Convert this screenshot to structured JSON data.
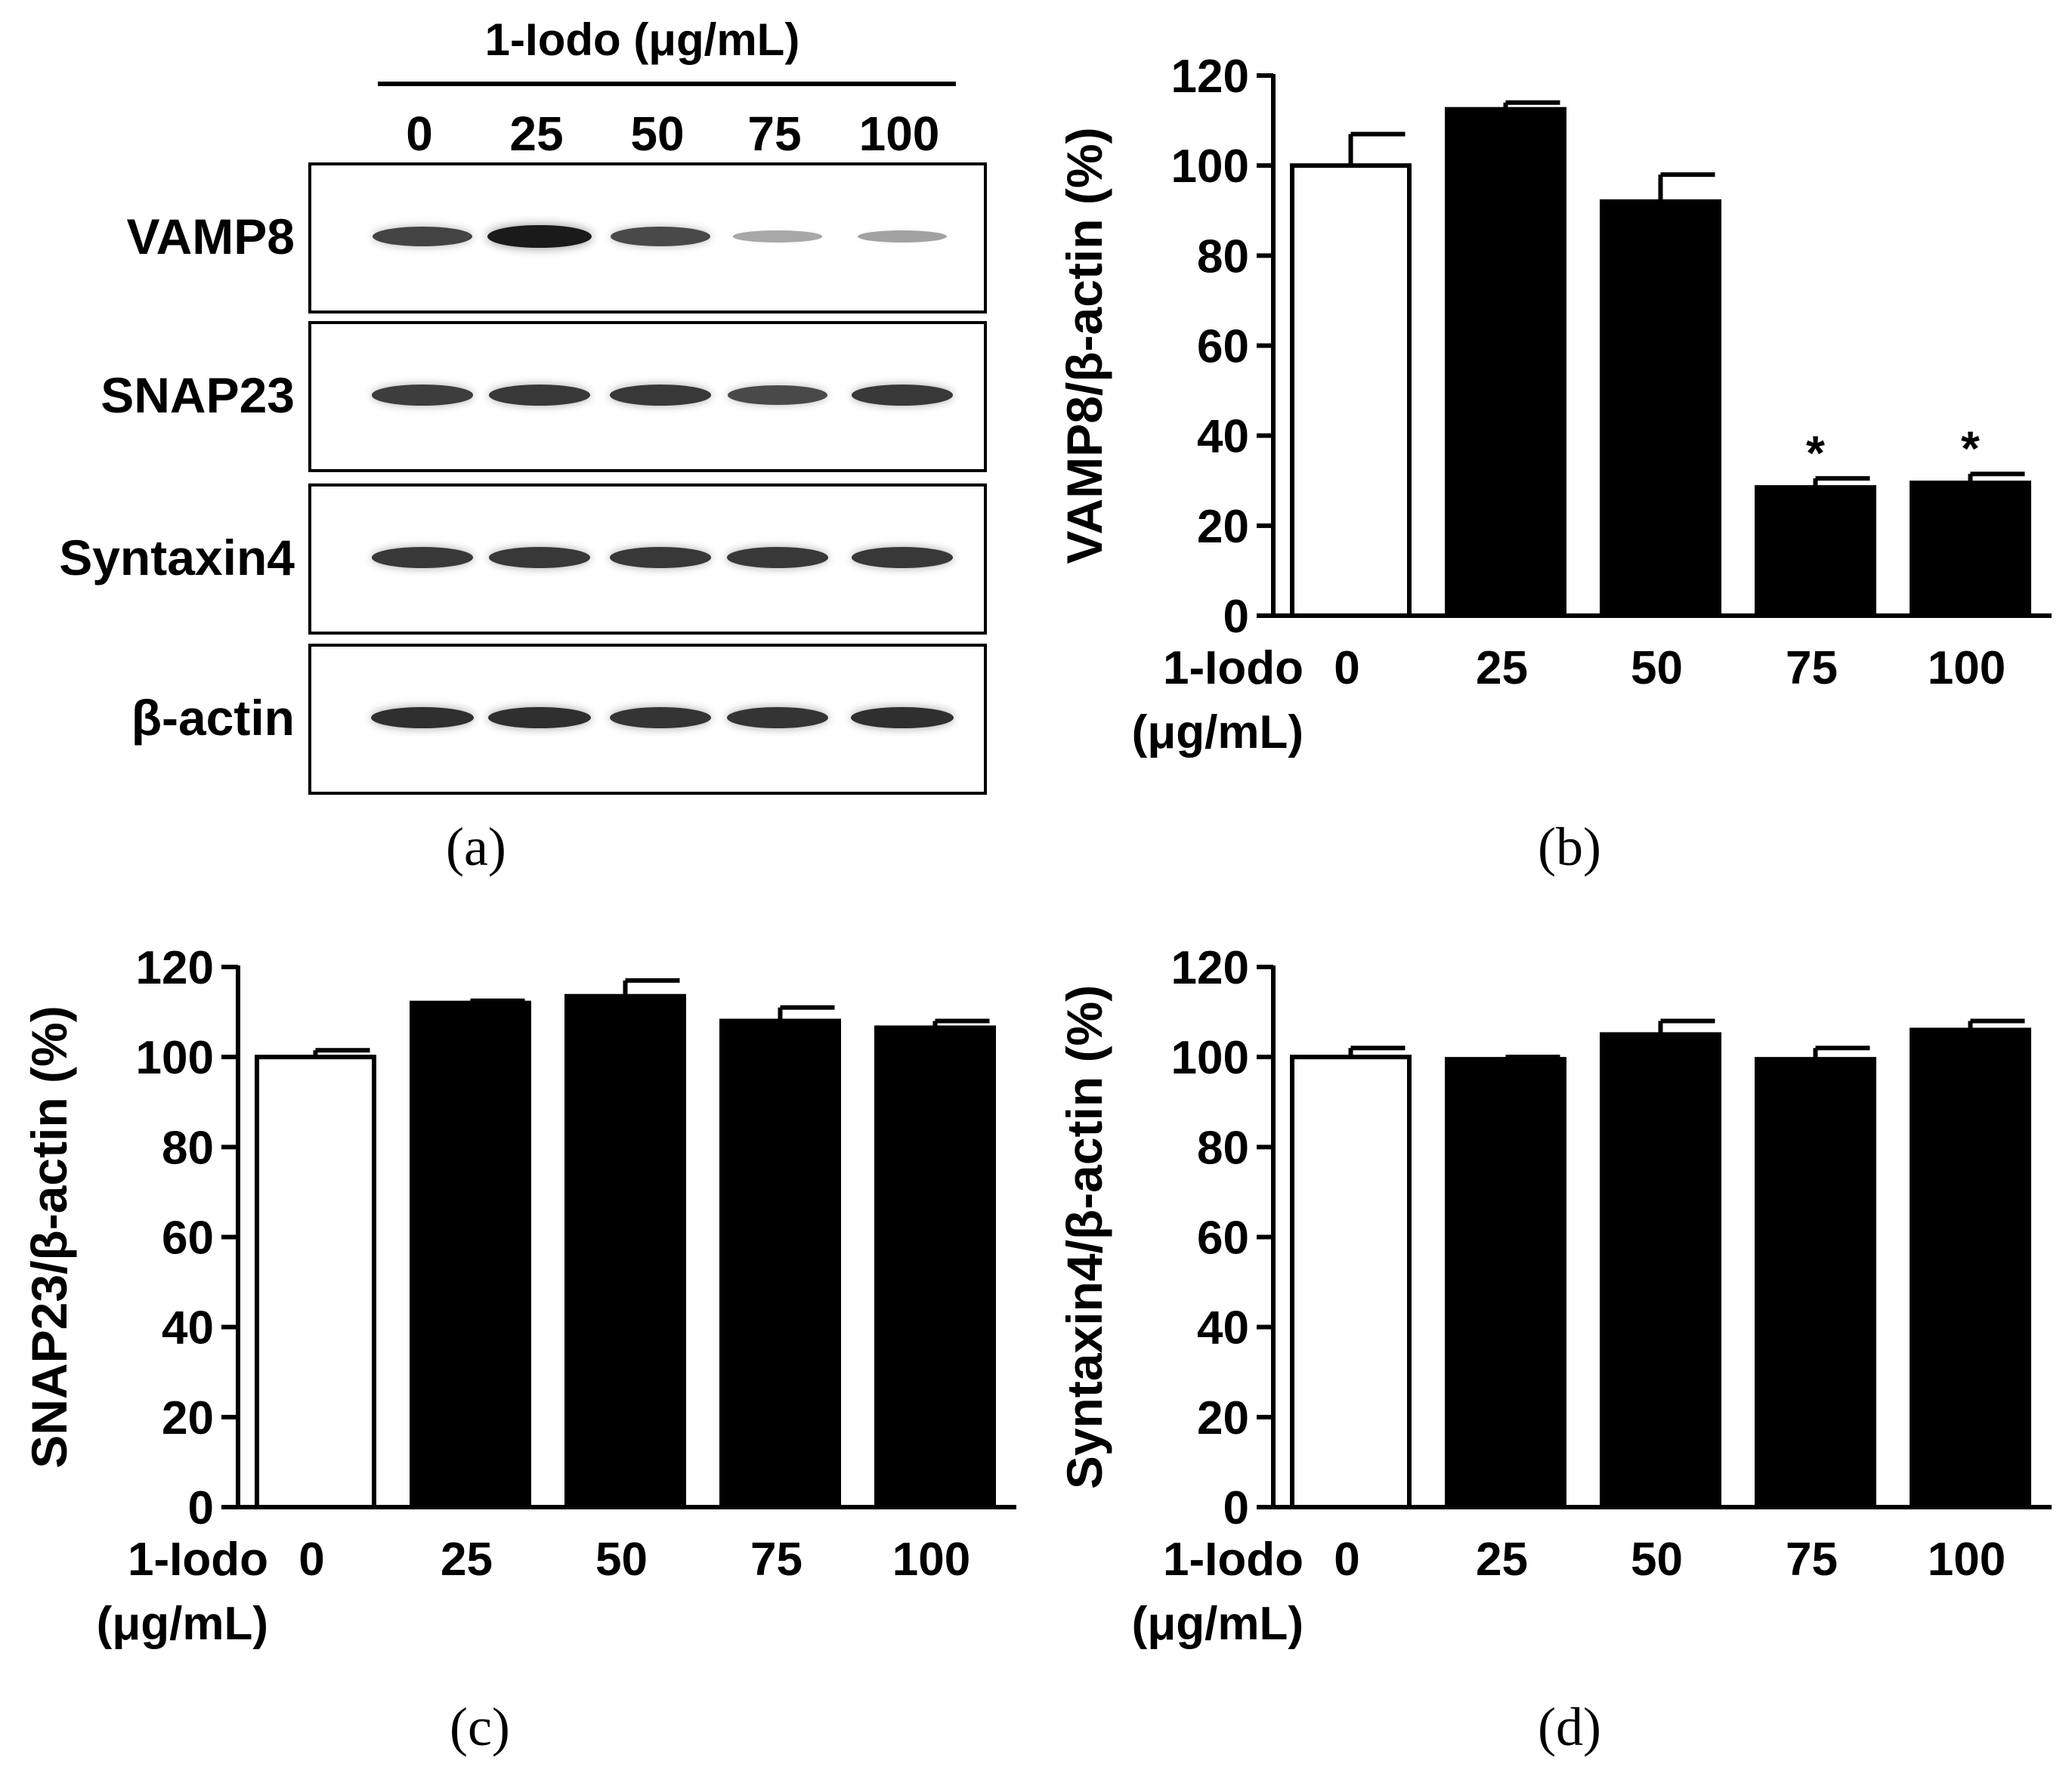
{
  "figure": {
    "panel_a": {
      "header": "1-Iodo (μg/mL)",
      "lanes": [
        "0",
        "25",
        "50",
        "75",
        "100"
      ],
      "rows": [
        {
          "label": "VAMP8",
          "intensity": [
            0.75,
            0.95,
            0.72,
            0.25,
            0.28
          ]
        },
        {
          "label": "SNAP23",
          "intensity": [
            0.78,
            0.8,
            0.8,
            0.72,
            0.8
          ]
        },
        {
          "label": "Syntaxin4",
          "intensity": [
            0.8,
            0.8,
            0.8,
            0.8,
            0.8
          ]
        },
        {
          "label": "β-actin",
          "intensity": [
            0.85,
            0.85,
            0.82,
            0.82,
            0.85
          ]
        }
      ],
      "caption": "(a)"
    },
    "captions": {
      "b": "(b)",
      "c": "(c)",
      "d": "(d)"
    }
  },
  "chart_data": [
    {
      "type": "bar",
      "panel": "b",
      "categories": [
        "0",
        "25",
        "50",
        "75",
        "100"
      ],
      "values": [
        100,
        112.5,
        92,
        28.5,
        29.5
      ],
      "errors": [
        7,
        1.5,
        6,
        2,
        2
      ],
      "bar_fills": [
        "#ffffff",
        "#000000",
        "#000000",
        "#000000",
        "#000000"
      ],
      "significance": [
        "",
        "",
        "",
        "*",
        "*"
      ],
      "ylabel": "VAMP8/β-actin (%)",
      "xlabel_line1": "1-Iodo",
      "xlabel_line2": "(μg/mL)",
      "yticks": [
        "0",
        "20",
        "40",
        "60",
        "80",
        "100",
        "120"
      ],
      "ylim": [
        0,
        120
      ]
    },
    {
      "type": "bar",
      "panel": "c",
      "categories": [
        "0",
        "25",
        "50",
        "75",
        "100"
      ],
      "values": [
        100,
        112,
        113.5,
        108,
        106.5
      ],
      "errors": [
        1.5,
        0.5,
        3.5,
        3,
        1.5
      ],
      "bar_fills": [
        "#ffffff",
        "#000000",
        "#000000",
        "#000000",
        "#000000"
      ],
      "significance": [
        "",
        "",
        "",
        "",
        ""
      ],
      "ylabel": "SNAP23/β-actin (%)",
      "xlabel_line1": "1-Iodo",
      "xlabel_line2": "(μg/mL)",
      "yticks": [
        "0",
        "20",
        "40",
        "60",
        "80",
        "100",
        "120"
      ],
      "ylim": [
        0,
        120
      ]
    },
    {
      "type": "bar",
      "panel": "d",
      "categories": [
        "0",
        "25",
        "50",
        "75",
        "100"
      ],
      "values": [
        100,
        99.5,
        105,
        99.5,
        106
      ],
      "errors": [
        2,
        0.5,
        3,
        2.5,
        2
      ],
      "bar_fills": [
        "#ffffff",
        "#000000",
        "#000000",
        "#000000",
        "#000000"
      ],
      "significance": [
        "",
        "",
        "",
        "",
        ""
      ],
      "ylabel": "Syntaxin4/β-actin (%)",
      "xlabel_line1": "1-Iodo",
      "xlabel_line2": "(μg/mL)",
      "yticks": [
        "0",
        "20",
        "40",
        "60",
        "80",
        "100",
        "120"
      ],
      "ylim": [
        0,
        120
      ]
    }
  ]
}
